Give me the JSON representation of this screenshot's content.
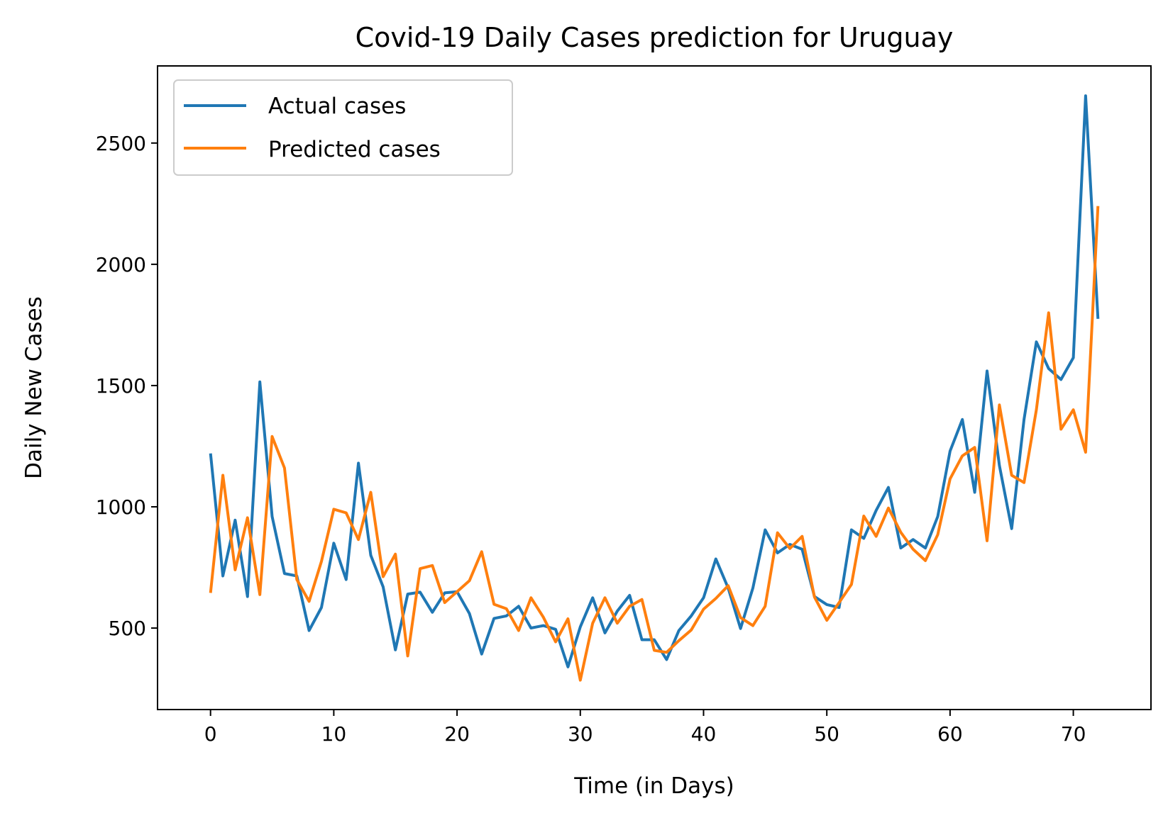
{
  "chart_data": {
    "type": "line",
    "title": "Covid-19 Daily Cases prediction for Uruguay",
    "xlabel": "Time (in Days)",
    "ylabel": "Daily New Cases",
    "xlim": [
      -4.3,
      76.3
    ],
    "ylim": [
      164,
      2818
    ],
    "xticks": [
      0,
      10,
      20,
      30,
      40,
      50,
      60,
      70
    ],
    "yticks": [
      500,
      1000,
      1500,
      2000,
      2500
    ],
    "grid": false,
    "legend": "top-left",
    "x": [
      0,
      1,
      2,
      3,
      4,
      5,
      6,
      7,
      8,
      9,
      10,
      11,
      12,
      13,
      14,
      15,
      16,
      17,
      18,
      19,
      20,
      21,
      22,
      23,
      24,
      25,
      26,
      27,
      28,
      29,
      30,
      31,
      32,
      33,
      34,
      35,
      36,
      37,
      38,
      39,
      40,
      41,
      42,
      43,
      44,
      45,
      46,
      47,
      48,
      49,
      50,
      51,
      52,
      53,
      54,
      55,
      56,
      57,
      58,
      59,
      60,
      61,
      62,
      63,
      64,
      65,
      66,
      67,
      68,
      69,
      70,
      71,
      72
    ],
    "series": [
      {
        "name": "Actual cases",
        "color": "#1f77b4",
        "values": [
          1220,
          715,
          945,
          630,
          1515,
          960,
          725,
          715,
          490,
          585,
          850,
          700,
          1180,
          800,
          670,
          410,
          640,
          648,
          565,
          645,
          650,
          560,
          393,
          540,
          550,
          590,
          500,
          510,
          495,
          340,
          505,
          625,
          480,
          570,
          635,
          452,
          452,
          370,
          490,
          550,
          625,
          785,
          665,
          498,
          665,
          905,
          810,
          845,
          825,
          630,
          597,
          585,
          905,
          870,
          985,
          1080,
          830,
          865,
          830,
          960,
          1230,
          1360,
          1060,
          1560,
          1170,
          910,
          1360,
          1680,
          1570,
          1525,
          1615,
          2695,
          1775
        ]
      },
      {
        "name": "Predicted cases",
        "color": "#ff7f0e",
        "values": [
          645,
          1130,
          740,
          955,
          638,
          1290,
          1160,
          700,
          610,
          775,
          990,
          975,
          865,
          1060,
          712,
          805,
          385,
          745,
          758,
          605,
          650,
          695,
          815,
          598,
          580,
          490,
          625,
          545,
          443,
          538,
          285,
          520,
          625,
          520,
          590,
          618,
          408,
          400,
          448,
          492,
          578,
          622,
          675,
          543,
          510,
          590,
          893,
          828,
          878,
          628,
          532,
          605,
          680,
          962,
          878,
          995,
          895,
          825,
          778,
          885,
          1115,
          1210,
          1245,
          860,
          1420,
          1130,
          1100,
          1400,
          1800,
          1320,
          1400,
          1225,
          2240
        ]
      }
    ]
  }
}
